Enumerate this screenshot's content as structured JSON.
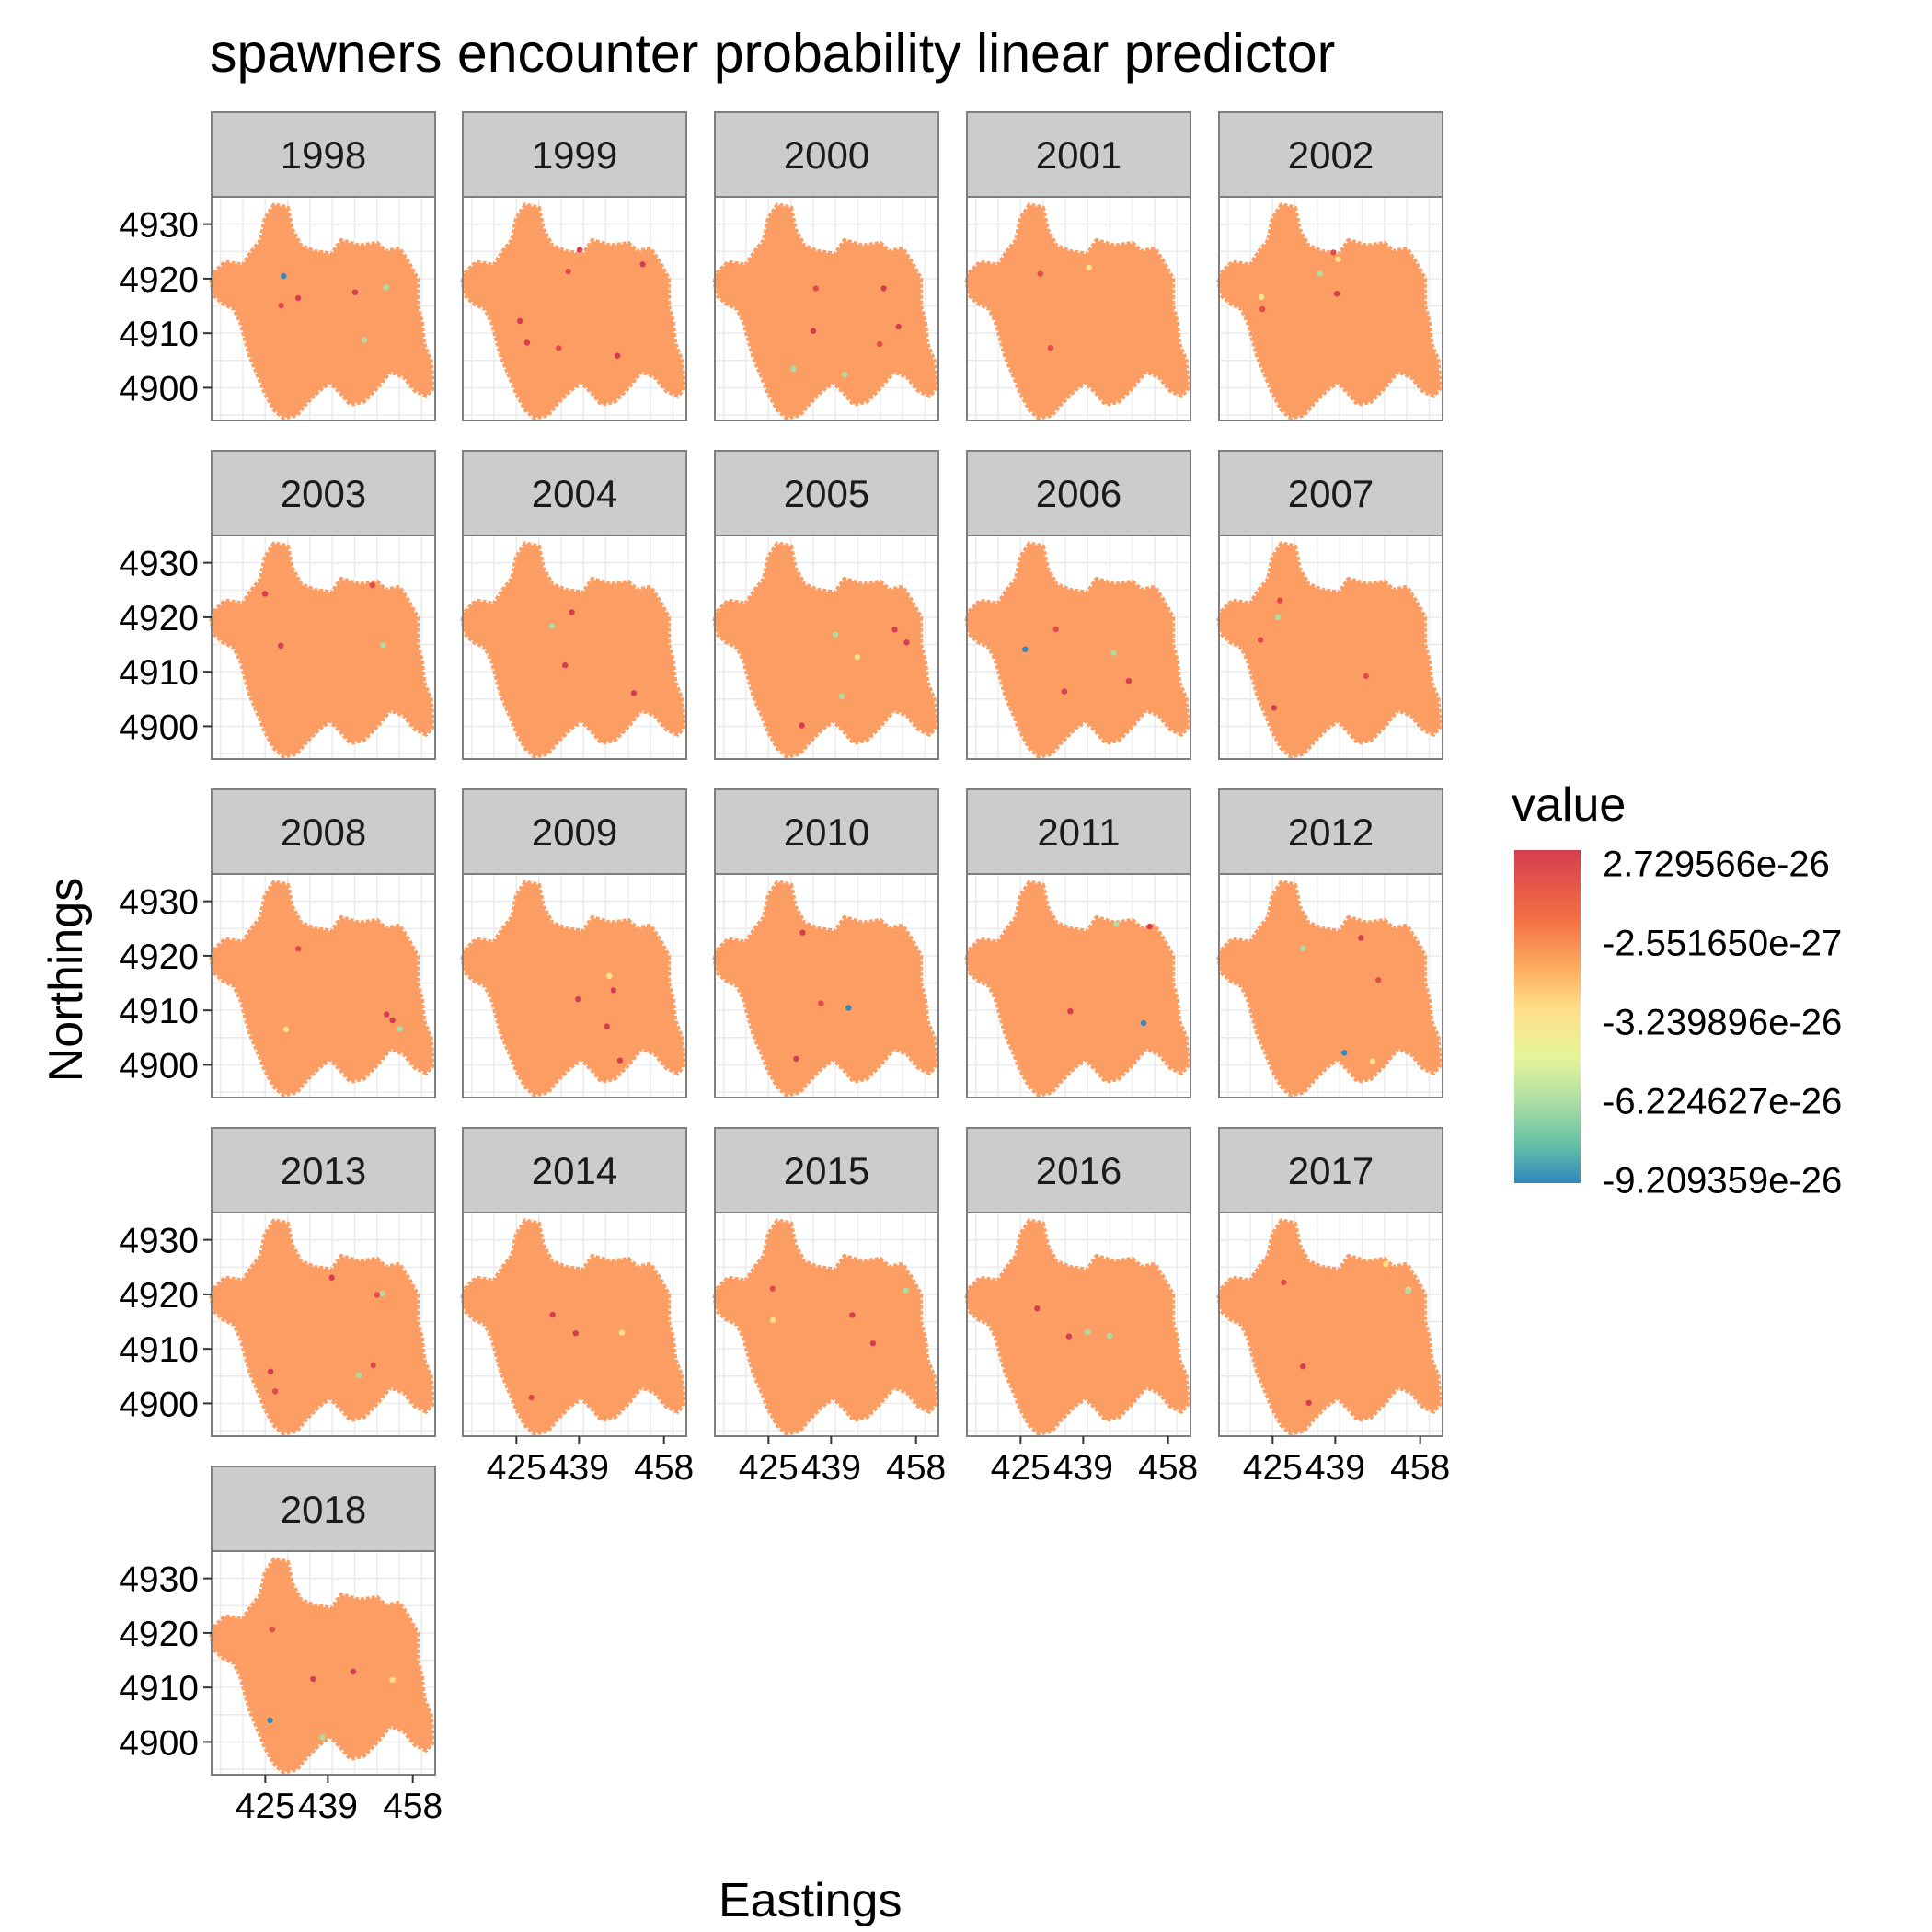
{
  "chart_data": {
    "type": "scatter",
    "title": "spawners encounter probability linear predictor",
    "xlabel": "Eastings",
    "ylabel": "Northings",
    "facets": [
      "1998",
      "1999",
      "2000",
      "2001",
      "2002",
      "2003",
      "2004",
      "2005",
      "2006",
      "2007",
      "2008",
      "2009",
      "2010",
      "2011",
      "2012",
      "2013",
      "2014",
      "2015",
      "2016",
      "2017",
      "2018"
    ],
    "x_ticks": [
      425,
      439,
      458
    ],
    "y_ticks": [
      4900,
      4910,
      4920,
      4930
    ],
    "xlim": [
      413,
      463
    ],
    "ylim": [
      4894,
      4935
    ],
    "grid": true,
    "legend": {
      "title": "value",
      "position": "right",
      "ticks": [
        "2.729566e-26",
        "-2.551650e-27",
        "-3.239896e-26",
        "-6.224627e-26",
        "-9.209359e-26"
      ],
      "colors": [
        "#d53e4f",
        "#f46d43",
        "#fdae61",
        "#fee08b",
        "#e6f598",
        "#abdda4",
        "#66c2a5",
        "#3288bd"
      ]
    },
    "base_point_color": "#fc9d63"
  }
}
